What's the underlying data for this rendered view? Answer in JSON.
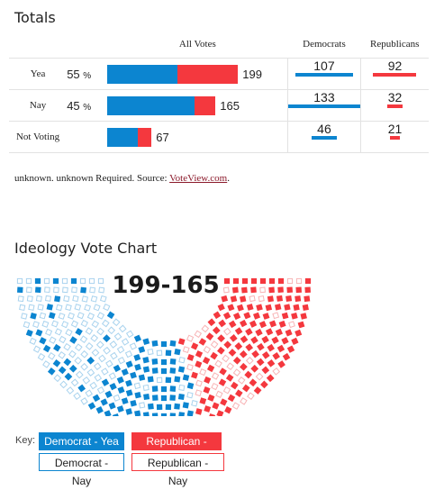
{
  "totals": {
    "heading": "Totals",
    "headers": {
      "all_votes": "All Votes",
      "democrats": "Democrats",
      "republicans": "Republicans"
    },
    "rows": [
      {
        "label": "Yea",
        "percent": "55",
        "percent_sign": "%",
        "total": "199",
        "democrats": "107",
        "republicans": "92",
        "dem_share": 0.54,
        "rep_share": 0.46
      },
      {
        "label": "Nay",
        "percent": "45",
        "percent_sign": "%",
        "total": "165",
        "democrats": "133",
        "republicans": "32",
        "dem_share": 0.81,
        "rep_share": 0.19
      },
      {
        "label": "Not Voting",
        "percent": "",
        "percent_sign": "",
        "total": "67",
        "democrats": "46",
        "republicans": "21",
        "dem_share": 0.69,
        "rep_share": 0.31
      }
    ],
    "max_total": 199,
    "dem_party_max": 133,
    "rep_party_max": 92
  },
  "source": {
    "text": "unknown. unknown Required. Source: ",
    "link": "VoteView.com",
    "end": "."
  },
  "ideology": {
    "heading": "Ideology Vote Chart",
    "score": "199-165",
    "key_label": "Key:",
    "key": {
      "dem_yea": "Democrat - Yea",
      "rep_yea": "Republican - Yea",
      "dem_nay": "Democrat - Nay",
      "rep_nay": "Republican - Nay"
    }
  },
  "colors": {
    "democrat": "#0c85d0",
    "republican": "#f4383e",
    "dem_light": "#a9d3ee",
    "rep_light": "#f8b4b6"
  }
}
